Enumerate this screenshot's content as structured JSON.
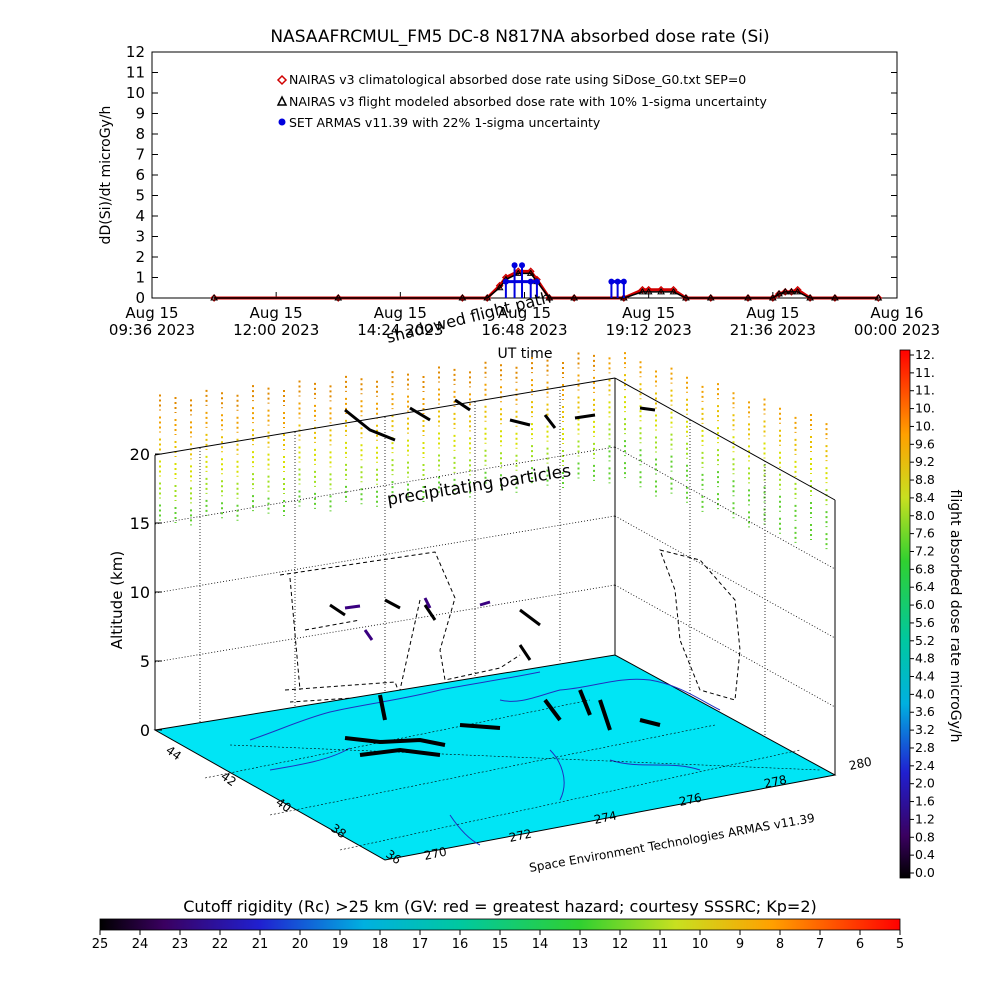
{
  "title": "NASAAFRCMUL_FM5 DC-8   N817NA absorbed dose rate (Si)",
  "chart_data": [
    {
      "type": "line",
      "title": "NASAAFRCMUL_FM5 DC-8   N817NA absorbed dose rate (Si)",
      "xlabel": "UT time",
      "ylabel": "dD(Si)/dt microGy/h",
      "ylim": [
        0,
        12
      ],
      "y_ticks": [
        "0",
        "1",
        "2",
        "3",
        "4",
        "5",
        "6",
        "7",
        "8",
        "9",
        "10",
        "11",
        "12"
      ],
      "x_ticks": [
        {
          "line1": "Aug 15",
          "line2": "09:36 2023",
          "t": 0
        },
        {
          "line1": "Aug 15",
          "line2": "12:00 2023",
          "t": 1
        },
        {
          "line1": "Aug 15",
          "line2": "14:24 2023",
          "t": 2
        },
        {
          "line1": "Aug 15",
          "line2": "16:48 2023",
          "t": 3
        },
        {
          "line1": "Aug 15",
          "line2": "19:12 2023",
          "t": 4
        },
        {
          "line1": "Aug 15",
          "line2": "21:36 2023",
          "t": 5
        },
        {
          "line1": "Aug 16",
          "line2": "00:00 2023",
          "t": 6
        }
      ],
      "grid": false,
      "legend_position": "top-left",
      "series": [
        {
          "name": "NAIRAS v3 climatological absorbed dose rate using SiDose_G0.txt SEP=0",
          "color": "#d00000",
          "marker": "diamond",
          "x": [
            0.5,
            1.5,
            2.5,
            2.7,
            2.8,
            2.85,
            2.95,
            3.05,
            3.1,
            3.2,
            3.4,
            3.8,
            3.95,
            4.0,
            4.1,
            4.2,
            4.3,
            4.5,
            4.8,
            5.0,
            5.05,
            5.1,
            5.15,
            5.2,
            5.3,
            5.5,
            5.85
          ],
          "y": [
            0,
            0,
            0,
            0,
            0.6,
            1.0,
            1.3,
            1.3,
            0.9,
            0,
            0,
            0,
            0.4,
            0.4,
            0.4,
            0.4,
            0,
            0,
            0,
            0,
            0.2,
            0.3,
            0.3,
            0.4,
            0,
            0,
            0
          ]
        },
        {
          "name": "NAIRAS v3 flight modeled absorbed dose rate with 10% 1-sigma uncertainty",
          "color": "#000000",
          "marker": "triangle",
          "x": [
            0.5,
            1.5,
            2.5,
            2.7,
            2.8,
            2.85,
            2.95,
            3.05,
            3.1,
            3.2,
            3.4,
            3.8,
            3.95,
            4.0,
            4.1,
            4.2,
            4.3,
            4.5,
            4.8,
            5.0,
            5.05,
            5.1,
            5.15,
            5.2,
            5.3,
            5.5,
            5.85
          ],
          "y": [
            0,
            0,
            0,
            0,
            0.5,
            0.9,
            1.2,
            1.2,
            0.8,
            0,
            0,
            0,
            0.3,
            0.3,
            0.3,
            0.3,
            0,
            0,
            0,
            0,
            0.2,
            0.3,
            0.3,
            0.3,
            0,
            0,
            0
          ]
        },
        {
          "name": "SET ARMAS v11.39 with 22% 1-sigma uncertainty",
          "color": "#0000dd",
          "marker": "circle",
          "x": [
            2.85,
            2.92,
            2.98,
            3.05,
            3.1,
            3.7,
            3.75,
            3.8
          ],
          "y": [
            0.8,
            1.6,
            1.6,
            0.8,
            0.8,
            0.8,
            0.8,
            0.8
          ]
        }
      ]
    },
    {
      "type": "scatter",
      "title": "",
      "ylabel": "Altitude (km)",
      "z_ticks": [
        "0",
        "5",
        "10",
        "15",
        "20"
      ],
      "lat_ticks": [
        "44",
        "42",
        "40",
        "38",
        "36"
      ],
      "lon_ticks": [
        "270",
        "272",
        "274",
        "276",
        "278",
        "280"
      ],
      "annotations": [
        "shadowed flight path",
        "precipitating particles"
      ],
      "credit": "Space Environment Technologies ARMAS v11.39"
    }
  ],
  "dose_colorbar": {
    "label": "flight absorbed dose rate microGy/h",
    "ticks": [
      "12.",
      "11.",
      "11.",
      "10.",
      "10.",
      "9.6",
      "9.2",
      "8.8",
      "8.4",
      "8.0",
      "7.6",
      "7.2",
      "6.8",
      "6.4",
      "6.0",
      "5.6",
      "5.2",
      "4.8",
      "4.4",
      "4.0",
      "3.6",
      "3.2",
      "2.8",
      "2.4",
      "2.0",
      "1.6",
      "1.2",
      "0.8",
      "0.4",
      "0.0"
    ]
  },
  "rigidity_colorbar": {
    "label": "Cutoff rigidity (Rc) >25 km (GV: red = greatest hazard; courtesy SSSRC; Kp=2)",
    "ticks": [
      "25",
      "24",
      "23",
      "22",
      "21",
      "20",
      "19",
      "18",
      "17",
      "16",
      "15",
      "14",
      "13",
      "12",
      "11",
      "10",
      "9",
      "8",
      "7",
      "6",
      "5"
    ]
  },
  "colors": {
    "ground": "#00e5f5",
    "coastline": "#2030c0",
    "series_red": "#d00000",
    "series_blue": "#0000dd"
  }
}
